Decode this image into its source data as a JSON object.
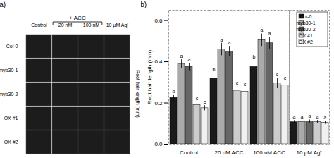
{
  "chart_data": [
    {
      "type": "image_grid",
      "title": "(a)",
      "x": [
        "Control",
        "20 nM",
        "100 nM",
        "10 μM Ag⁺"
      ],
      "y": [
        "Col-0",
        "myb30-1",
        "myb30-2",
        "OX #1",
        "OX #2"
      ],
      "annotations": [
        "+ ACC"
      ],
      "ylabel": "Root hair length (mm)"
    },
    {
      "type": "bar",
      "title": "(b)",
      "categories": [
        "Control",
        "20 nM ACC",
        "100 nM ACC",
        "10 μM Ag⁺"
      ],
      "series": [
        {
          "name": "Col-0",
          "color": "#1a1a1a",
          "values": [
            0.225,
            0.32,
            0.375,
            0.107
          ],
          "errors": [
            0.015,
            0.025,
            0.03,
            0.008
          ],
          "letters": [
            "b",
            "b",
            "b",
            "a"
          ]
        },
        {
          "name": "myb30-1",
          "color": "#aaaaaa",
          "values": [
            0.39,
            0.46,
            0.505,
            0.108
          ],
          "errors": [
            0.02,
            0.03,
            0.03,
            0.008
          ],
          "letters": [
            "a",
            "a",
            "a",
            "a"
          ]
        },
        {
          "name": "myb30-2",
          "color": "#666666",
          "values": [
            0.375,
            0.45,
            0.49,
            0.11
          ],
          "errors": [
            0.018,
            0.025,
            0.028,
            0.008
          ],
          "letters": [
            "a",
            "a",
            "a",
            "a"
          ]
        },
        {
          "name": "OX #1",
          "color": "#cccccc",
          "values": [
            0.19,
            0.26,
            0.295,
            0.108
          ],
          "errors": [
            0.015,
            0.02,
            0.025,
            0.008
          ],
          "letters": [
            "c",
            "c",
            "c",
            "a"
          ]
        },
        {
          "name": "OX #2",
          "color": "#f0f0f0",
          "values": [
            0.175,
            0.255,
            0.285,
            0.105
          ],
          "errors": [
            0.012,
            0.018,
            0.02,
            0.008
          ],
          "letters": [
            "c",
            "c",
            "c",
            "a"
          ]
        }
      ],
      "ylabel": "Root hair length (mm)",
      "ylim": [
        0,
        0.65
      ],
      "yticks": [
        {
          "value": 0,
          "label": "0.0"
        },
        0.2,
        0.4,
        0.6
      ],
      "legend": "upper right"
    }
  ]
}
